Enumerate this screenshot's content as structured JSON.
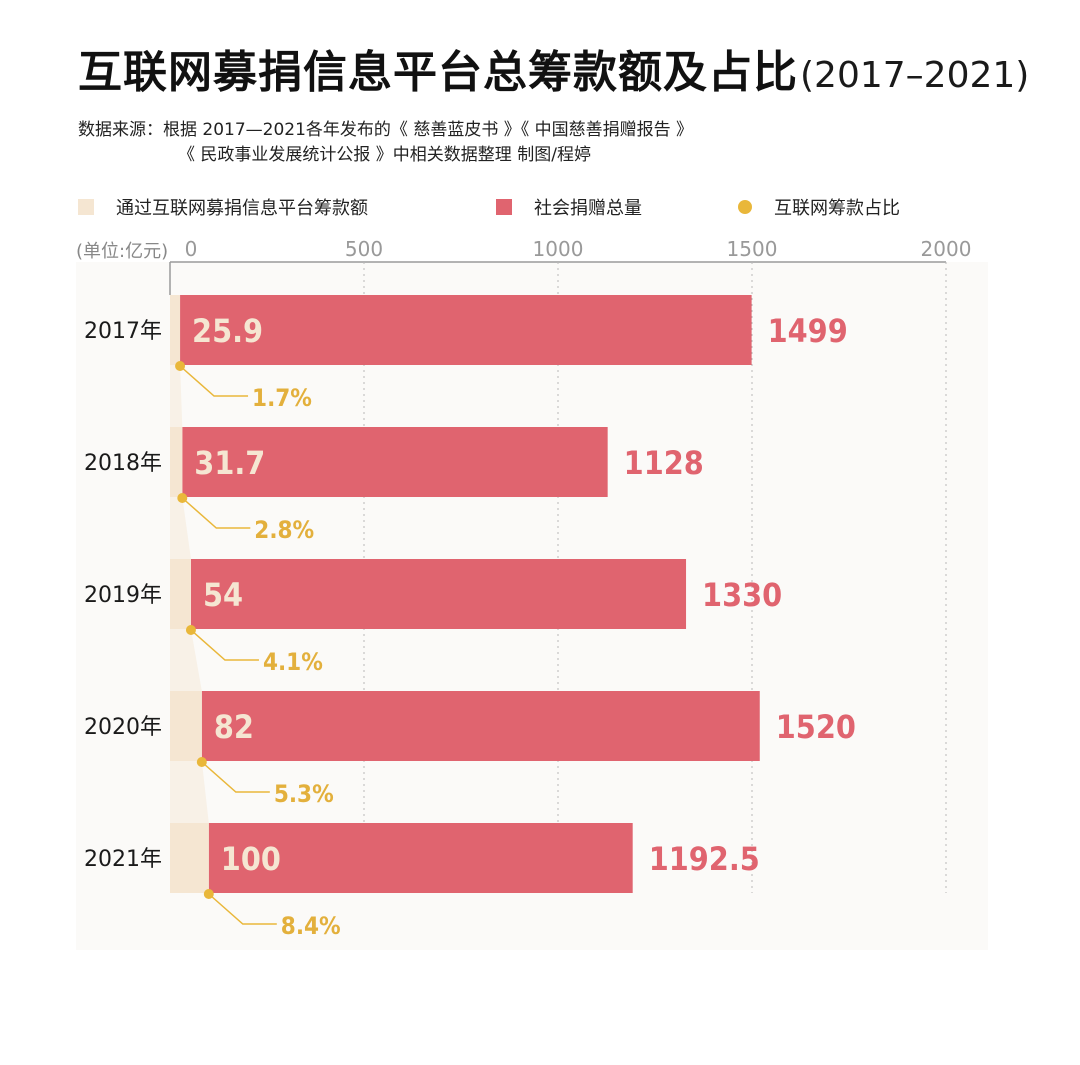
{
  "title": "互联网募捐信息平台总筹款额及占比",
  "title_years": "(2017–2021)",
  "source_line1": "数据来源：根据 2017—2021各年发布的《 慈善蓝皮书 》《 中国慈善捐赠报告 》",
  "source_line2": "《 民政事业发展统计公报 》中相关数据整理    制图/程婷",
  "unit": "(单位:亿元)",
  "colors": {
    "online": "#f5e6d2",
    "total": "#e0646f",
    "ratio": "#e9b73a",
    "ratio_text": "#e3b03c",
    "total_label": "#e0646f",
    "online_label": "#f5e6d2"
  },
  "legend": [
    {
      "label": "通过互联网募捐信息平台筹款额",
      "marker": "square",
      "color": "#f5e6d2"
    },
    {
      "label": "社会捐赠总量",
      "marker": "square",
      "color": "#e0646f"
    },
    {
      "label": "互联网筹款占比",
      "marker": "circle",
      "color": "#e9b73a"
    }
  ],
  "chart_data": {
    "type": "bar",
    "orientation": "horizontal",
    "categories": [
      "2017年",
      "2018年",
      "2019年",
      "2020年",
      "2021年"
    ],
    "series": [
      {
        "name": "通过互联网募捐信息平台筹款额",
        "values": [
          25.9,
          31.7,
          54,
          82,
          100
        ],
        "labels": [
          "25.9",
          "31.7",
          "54",
          "82",
          "100"
        ]
      },
      {
        "name": "社会捐赠总量",
        "values": [
          1499,
          1128,
          1330,
          1520,
          1192.5
        ],
        "labels": [
          "1499",
          "1128",
          "1330",
          "1520",
          "1192.5"
        ]
      },
      {
        "name": "互联网筹款占比",
        "values": [
          1.7,
          2.8,
          4.1,
          5.3,
          8.4
        ],
        "labels": [
          "1.7%",
          "2.8%",
          "4.1%",
          "5.3%",
          "8.4%"
        ]
      }
    ],
    "xlim": [
      0,
      2000
    ],
    "xticks": [
      0,
      500,
      1000,
      1500,
      2000
    ],
    "xtick_labels": [
      "0",
      "500",
      "1000",
      "1500",
      "2000"
    ],
    "grid": true,
    "legend_position": "top"
  }
}
